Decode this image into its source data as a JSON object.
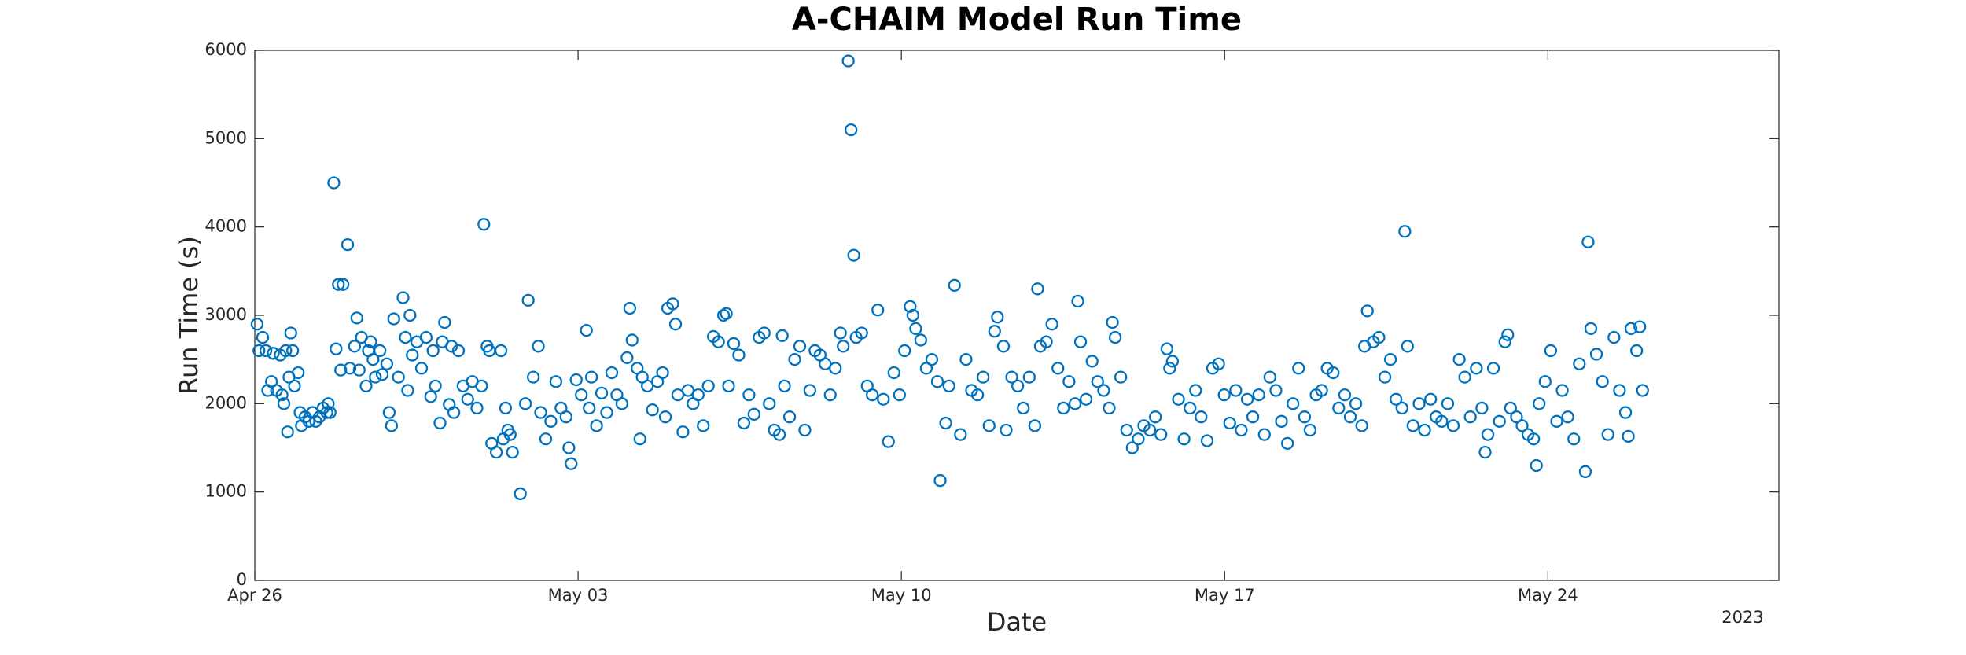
{
  "chart_data": {
    "type": "scatter",
    "title": "A-CHAIM Model Run Time",
    "xlabel": "Date",
    "ylabel": "Run Time (s)",
    "year_label": "2023",
    "color": "#0072bd",
    "grid": false,
    "xlim": [
      0,
      33
    ],
    "xticks": [
      {
        "value": 0,
        "label": "Apr 26"
      },
      {
        "value": 7,
        "label": "May 03"
      },
      {
        "value": 14,
        "label": "May 10"
      },
      {
        "value": 21,
        "label": "May 17"
      },
      {
        "value": 28,
        "label": "May 24"
      }
    ],
    "ylim": [
      0,
      6000
    ],
    "yticks": [
      0,
      1000,
      2000,
      3000,
      4000,
      5000,
      6000
    ],
    "x": [
      0.05,
      0.09,
      0.17,
      0.24,
      0.28,
      0.36,
      0.4,
      0.47,
      0.55,
      0.59,
      0.63,
      0.67,
      0.71,
      0.74,
      0.78,
      0.82,
      0.86,
      0.94,
      0.98,
      1.01,
      1.09,
      1.17,
      1.25,
      1.32,
      1.4,
      1.48,
      1.56,
      1.59,
      1.63,
      1.71,
      1.76,
      1.81,
      1.86,
      1.91,
      2.01,
      2.06,
      2.16,
      2.21,
      2.26,
      2.31,
      2.41,
      2.46,
      2.51,
      2.56,
      2.61,
      2.71,
      2.76,
      2.86,
      2.91,
      2.96,
      3.01,
      3.11,
      3.21,
      3.26,
      3.31,
      3.36,
      3.41,
      3.51,
      3.61,
      3.71,
      3.81,
      3.86,
      3.91,
      4.01,
      4.06,
      4.11,
      4.21,
      4.26,
      4.31,
      4.41,
      4.51,
      4.61,
      4.71,
      4.81,
      4.91,
      4.96,
      5.03,
      5.08,
      5.13,
      5.23,
      5.33,
      5.38,
      5.43,
      5.48,
      5.53,
      5.58,
      5.75,
      5.86,
      5.92,
      6.03,
      6.14,
      6.19,
      6.3,
      6.41,
      6.52,
      6.63,
      6.74,
      6.8,
      6.85,
      6.96,
      7.07,
      7.18,
      7.24,
      7.29,
      7.4,
      7.51,
      7.62,
      7.73,
      7.84,
      7.95,
      8.06,
      8.12,
      8.17,
      8.28,
      8.34,
      8.39,
      8.5,
      8.61,
      8.72,
      8.83,
      8.89,
      8.94,
      9.05,
      9.11,
      9.16,
      9.27,
      9.38,
      9.49,
      9.6,
      9.71,
      9.82,
      9.93,
      10.04,
      10.15,
      10.21,
      10.26,
      10.37,
      10.48,
      10.59,
      10.7,
      10.81,
      10.92,
      11.03,
      11.14,
      11.25,
      11.36,
      11.42,
      11.47,
      11.58,
      11.69,
      11.8,
      11.91,
      12.02,
      12.13,
      12.24,
      12.35,
      12.46,
      12.57,
      12.68,
      12.74,
      12.85,
      12.91,
      12.97,
      13.02,
      13.14,
      13.26,
      13.37,
      13.49,
      13.61,
      13.72,
      13.84,
      13.96,
      14.07,
      14.19,
      14.25,
      14.31,
      14.42,
      14.54,
      14.66,
      14.78,
      14.84,
      14.96,
      15.03,
      15.15,
      15.28,
      15.4,
      15.52,
      15.65,
      15.77,
      15.9,
      16.02,
      16.08,
      16.21,
      16.27,
      16.39,
      16.52,
      16.64,
      16.77,
      16.89,
      16.95,
      17.01,
      17.14,
      17.26,
      17.39,
      17.51,
      17.63,
      17.76,
      17.82,
      17.88,
      18.0,
      18.13,
      18.25,
      18.38,
      18.5,
      18.57,
      18.63,
      18.75,
      18.88,
      19.0,
      19.13,
      19.25,
      19.38,
      19.5,
      19.62,
      19.75,
      19.81,
      19.87,
      20.0,
      20.12,
      20.25,
      20.37,
      20.49,
      20.62,
      20.74,
      20.87,
      20.99,
      21.11,
      21.24,
      21.36,
      21.49,
      21.61,
      21.74,
      21.86,
      21.98,
      22.11,
      22.23,
      22.36,
      22.48,
      22.6,
      22.73,
      22.85,
      22.98,
      23.1,
      23.22,
      23.35,
      23.47,
      23.6,
      23.72,
      23.84,
      23.97,
      24.03,
      24.09,
      24.22,
      24.34,
      24.47,
      24.59,
      24.71,
      24.84,
      24.9,
      24.96,
      25.08,
      25.21,
      25.33,
      25.46,
      25.58,
      25.7,
      25.83,
      25.95,
      26.08,
      26.2,
      26.32,
      26.45,
      26.57,
      26.64,
      26.7,
      26.82,
      26.95,
      27.07,
      27.13,
      27.19,
      27.32,
      27.44,
      27.57,
      27.69,
      27.75,
      27.81,
      27.94,
      28.06,
      28.19,
      28.31,
      28.43,
      28.56,
      28.68,
      28.81,
      28.87,
      28.93,
      29.05,
      29.18,
      29.3,
      29.43,
      29.55,
      29.68,
      29.74,
      29.8,
      29.92,
      29.99,
      30.05
    ],
    "values": [
      2900,
      2600,
      2750,
      2600,
      2150,
      2250,
      2570,
      2150,
      2550,
      2100,
      2000,
      2600,
      1680,
      2300,
      2800,
      2600,
      2200,
      2350,
      1900,
      1750,
      1850,
      1800,
      1900,
      1800,
      1850,
      1950,
      1900,
      2000,
      1900,
      4500,
      2620,
      3350,
      2380,
      3350,
      3800,
      2400,
      2650,
      2970,
      2380,
      2750,
      2200,
      2600,
      2700,
      2500,
      2300,
      2600,
      2330,
      2450,
      1900,
      1750,
      2960,
      2300,
      3200,
      2750,
      2150,
      3000,
      2550,
      2700,
      2400,
      2750,
      2080,
      2600,
      2200,
      1780,
      2700,
      2920,
      1990,
      2650,
      1900,
      2600,
      2200,
      2050,
      2250,
      1950,
      2200,
      4030,
      2650,
      2600,
      1550,
      1450,
      2600,
      1600,
      1950,
      1700,
      1650,
      1450,
      980,
      2000,
      3170,
      2300,
      2650,
      1900,
      1600,
      1800,
      2250,
      1950,
      1850,
      1500,
      1320,
      2270,
      2100,
      2830,
      1950,
      2300,
      1750,
      2120,
      1900,
      2350,
      2100,
      2000,
      2520,
      3080,
      2720,
      2400,
      1600,
      2300,
      2200,
      1930,
      2250,
      2350,
      1850,
      3080,
      3130,
      2900,
      2100,
      1680,
      2150,
      2000,
      2100,
      1750,
      2200,
      2760,
      2700,
      3000,
      3020,
      2200,
      2680,
      2550,
      1780,
      2100,
      1880,
      2750,
      2800,
      2000,
      1700,
      1650,
      2770,
      2200,
      1850,
      2500,
      2650,
      1700,
      2150,
      2600,
      2550,
      2450,
      2100,
      2400,
      2800,
      2650,
      5880,
      5100,
      3680,
      2750,
      2800,
      2200,
      2100,
      3060,
      2050,
      1570,
      2350,
      2100,
      2600,
      3100,
      3000,
      2850,
      2720,
      2400,
      2500,
      2250,
      1130,
      1780,
      2200,
      3340,
      1650,
      2500,
      2150,
      2100,
      2300,
      1750,
      2820,
      2980,
      2650,
      1700,
      2300,
      2200,
      1950,
      2300,
      1750,
      3300,
      2650,
      2700,
      2900,
      2400,
      1950,
      2250,
      2000,
      3160,
      2700,
      2050,
      2480,
      2250,
      2150,
      1950,
      2920,
      2750,
      2300,
      1700,
      1500,
      1600,
      1750,
      1700,
      1850,
      1650,
      2620,
      2400,
      2480,
      2050,
      1600,
      1950,
      2150,
      1850,
      1580,
      2400,
      2450,
      2100,
      1780,
      2150,
      1700,
      2050,
      1850,
      2100,
      1650,
      2300,
      2150,
      1800,
      1550,
      2000,
      2400,
      1850,
      1700,
      2100,
      2150,
      2400,
      2350,
      1950,
      2100,
      1850,
      2000,
      1750,
      2650,
      3050,
      2700,
      2750,
      2300,
      2500,
      2050,
      1950,
      3950,
      2650,
      1750,
      2000,
      1700,
      2050,
      1850,
      1800,
      2000,
      1750,
      2500,
      2300,
      1850,
      2400,
      1950,
      1450,
      1650,
      2400,
      1800,
      2700,
      2780,
      1950,
      1850,
      1750,
      1650,
      1600,
      1300,
      2000,
      2250,
      2600,
      1800,
      2150,
      1850,
      1600,
      2450,
      1230,
      3830,
      2850,
      2560,
      2250,
      1650,
      2750,
      2150,
      1900,
      1630,
      2850,
      2600,
      2870,
      2150
    ]
  }
}
